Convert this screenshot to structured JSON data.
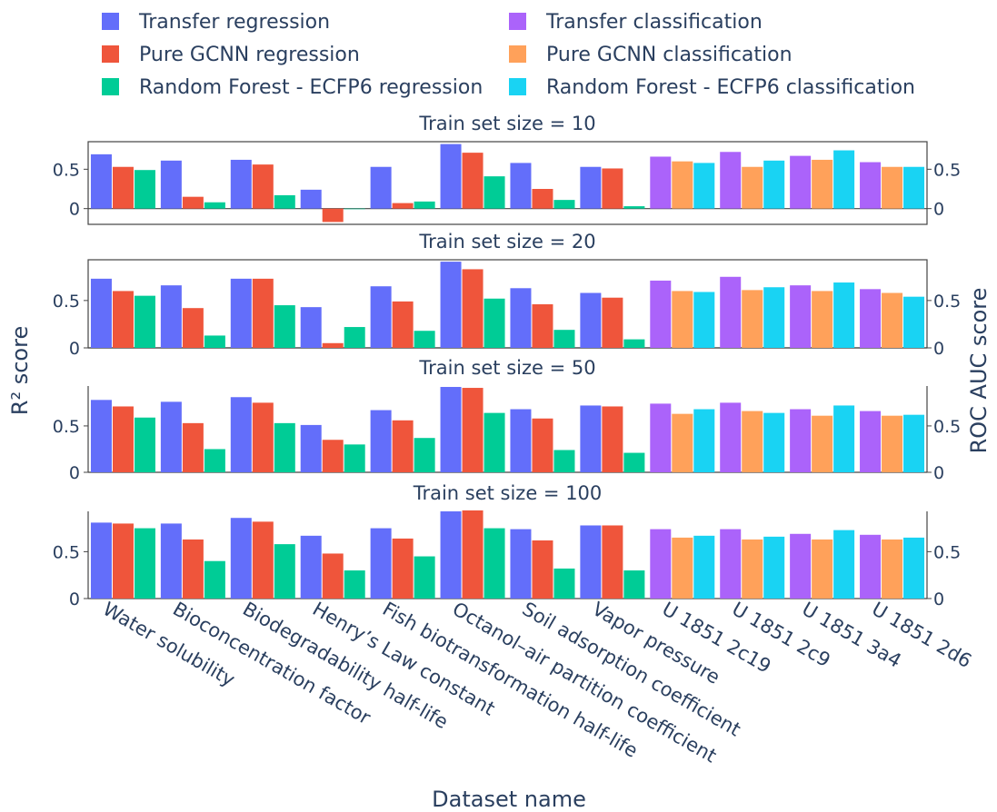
{
  "chart_data": {
    "type": "bar",
    "xlabel": "Dataset name",
    "ylabel_left": "R² score",
    "ylabel_right": "ROC AUC score",
    "left_y_ticks": [
      "0",
      "0.5"
    ],
    "right_y_ticks": [
      "0",
      "0.5"
    ],
    "categories": [
      "Water solubility",
      "Bioconcentration factor",
      "Biodegradability half-life",
      "Henry’s Law constant",
      "Fish biotransformation half-life",
      "Octanol–air partition coefficient",
      "Soil adsorption coefficient",
      "Vapor pressure",
      "U 1851 2c19",
      "U 1851 2c9",
      "U 1851 3a4",
      "U 1851 2d6"
    ],
    "legend": [
      {
        "name": "Transfer regression",
        "color": "#636efa"
      },
      {
        "name": "Transfer classification",
        "color": "#ab63fa"
      },
      {
        "name": "Pure GCNN regression",
        "color": "#ef553b"
      },
      {
        "name": "Pure GCNN classification",
        "color": "#ffa15a"
      },
      {
        "name": "Random Forest - ECFP6 regression",
        "color": "#00cc96"
      },
      {
        "name": "Random Forest - ECFP6 classification",
        "color": "#19d3f3"
      }
    ],
    "regression_colors": [
      "#636efa",
      "#ef553b",
      "#00cc96"
    ],
    "classification_colors": [
      "#ab63fa",
      "#ffa15a",
      "#19d3f3"
    ],
    "panels": [
      {
        "title": "Train set size = 10",
        "ylim": [
          -0.2,
          0.85
        ],
        "regression": [
          [
            0.69,
            0.53,
            0.49
          ],
          [
            0.61,
            0.15,
            0.08
          ],
          [
            0.62,
            0.56,
            0.17
          ],
          [
            0.24,
            -0.17,
            0.0
          ],
          [
            0.53,
            0.07,
            0.09
          ],
          [
            0.82,
            0.71,
            0.41
          ],
          [
            0.58,
            0.25,
            0.11
          ],
          [
            0.53,
            0.51,
            0.03
          ]
        ],
        "classification": [
          [
            0.66,
            0.6,
            0.58
          ],
          [
            0.72,
            0.53,
            0.61
          ],
          [
            0.67,
            0.62,
            0.74
          ],
          [
            0.59,
            0.53,
            0.53
          ]
        ]
      },
      {
        "title": "Train set size = 20",
        "ylim": [
          0,
          0.93
        ],
        "regression": [
          [
            0.73,
            0.6,
            0.55
          ],
          [
            0.66,
            0.42,
            0.13
          ],
          [
            0.73,
            0.73,
            0.45
          ],
          [
            0.43,
            0.05,
            0.22
          ],
          [
            0.65,
            0.49,
            0.18
          ],
          [
            0.91,
            0.83,
            0.52
          ],
          [
            0.63,
            0.46,
            0.19
          ],
          [
            0.58,
            0.53,
            0.09
          ]
        ],
        "classification": [
          [
            0.71,
            0.6,
            0.59
          ],
          [
            0.75,
            0.61,
            0.64
          ],
          [
            0.66,
            0.6,
            0.69
          ],
          [
            0.62,
            0.58,
            0.54
          ]
        ]
      },
      {
        "title": "Train set size = 50",
        "ylim": [
          0,
          0.93
        ],
        "regression": [
          [
            0.78,
            0.71,
            0.59
          ],
          [
            0.76,
            0.53,
            0.25
          ],
          [
            0.81,
            0.75,
            0.53
          ],
          [
            0.51,
            0.35,
            0.3
          ],
          [
            0.67,
            0.56,
            0.37
          ],
          [
            0.92,
            0.91,
            0.64
          ],
          [
            0.68,
            0.58,
            0.24
          ],
          [
            0.72,
            0.71,
            0.21
          ]
        ],
        "classification": [
          [
            0.74,
            0.63,
            0.68
          ],
          [
            0.75,
            0.66,
            0.64
          ],
          [
            0.68,
            0.61,
            0.72
          ],
          [
            0.66,
            0.61,
            0.62
          ]
        ]
      },
      {
        "title": "Train set size = 100",
        "ylim": [
          0,
          0.93
        ],
        "regression": [
          [
            0.81,
            0.8,
            0.75
          ],
          [
            0.8,
            0.63,
            0.4
          ],
          [
            0.86,
            0.82,
            0.58
          ],
          [
            0.67,
            0.48,
            0.3
          ],
          [
            0.75,
            0.64,
            0.45
          ],
          [
            0.93,
            0.94,
            0.75
          ],
          [
            0.74,
            0.62,
            0.32
          ],
          [
            0.78,
            0.78,
            0.3
          ]
        ],
        "classification": [
          [
            0.74,
            0.65,
            0.67
          ],
          [
            0.74,
            0.63,
            0.66
          ],
          [
            0.69,
            0.63,
            0.73
          ],
          [
            0.68,
            0.63,
            0.65
          ]
        ]
      }
    ]
  }
}
